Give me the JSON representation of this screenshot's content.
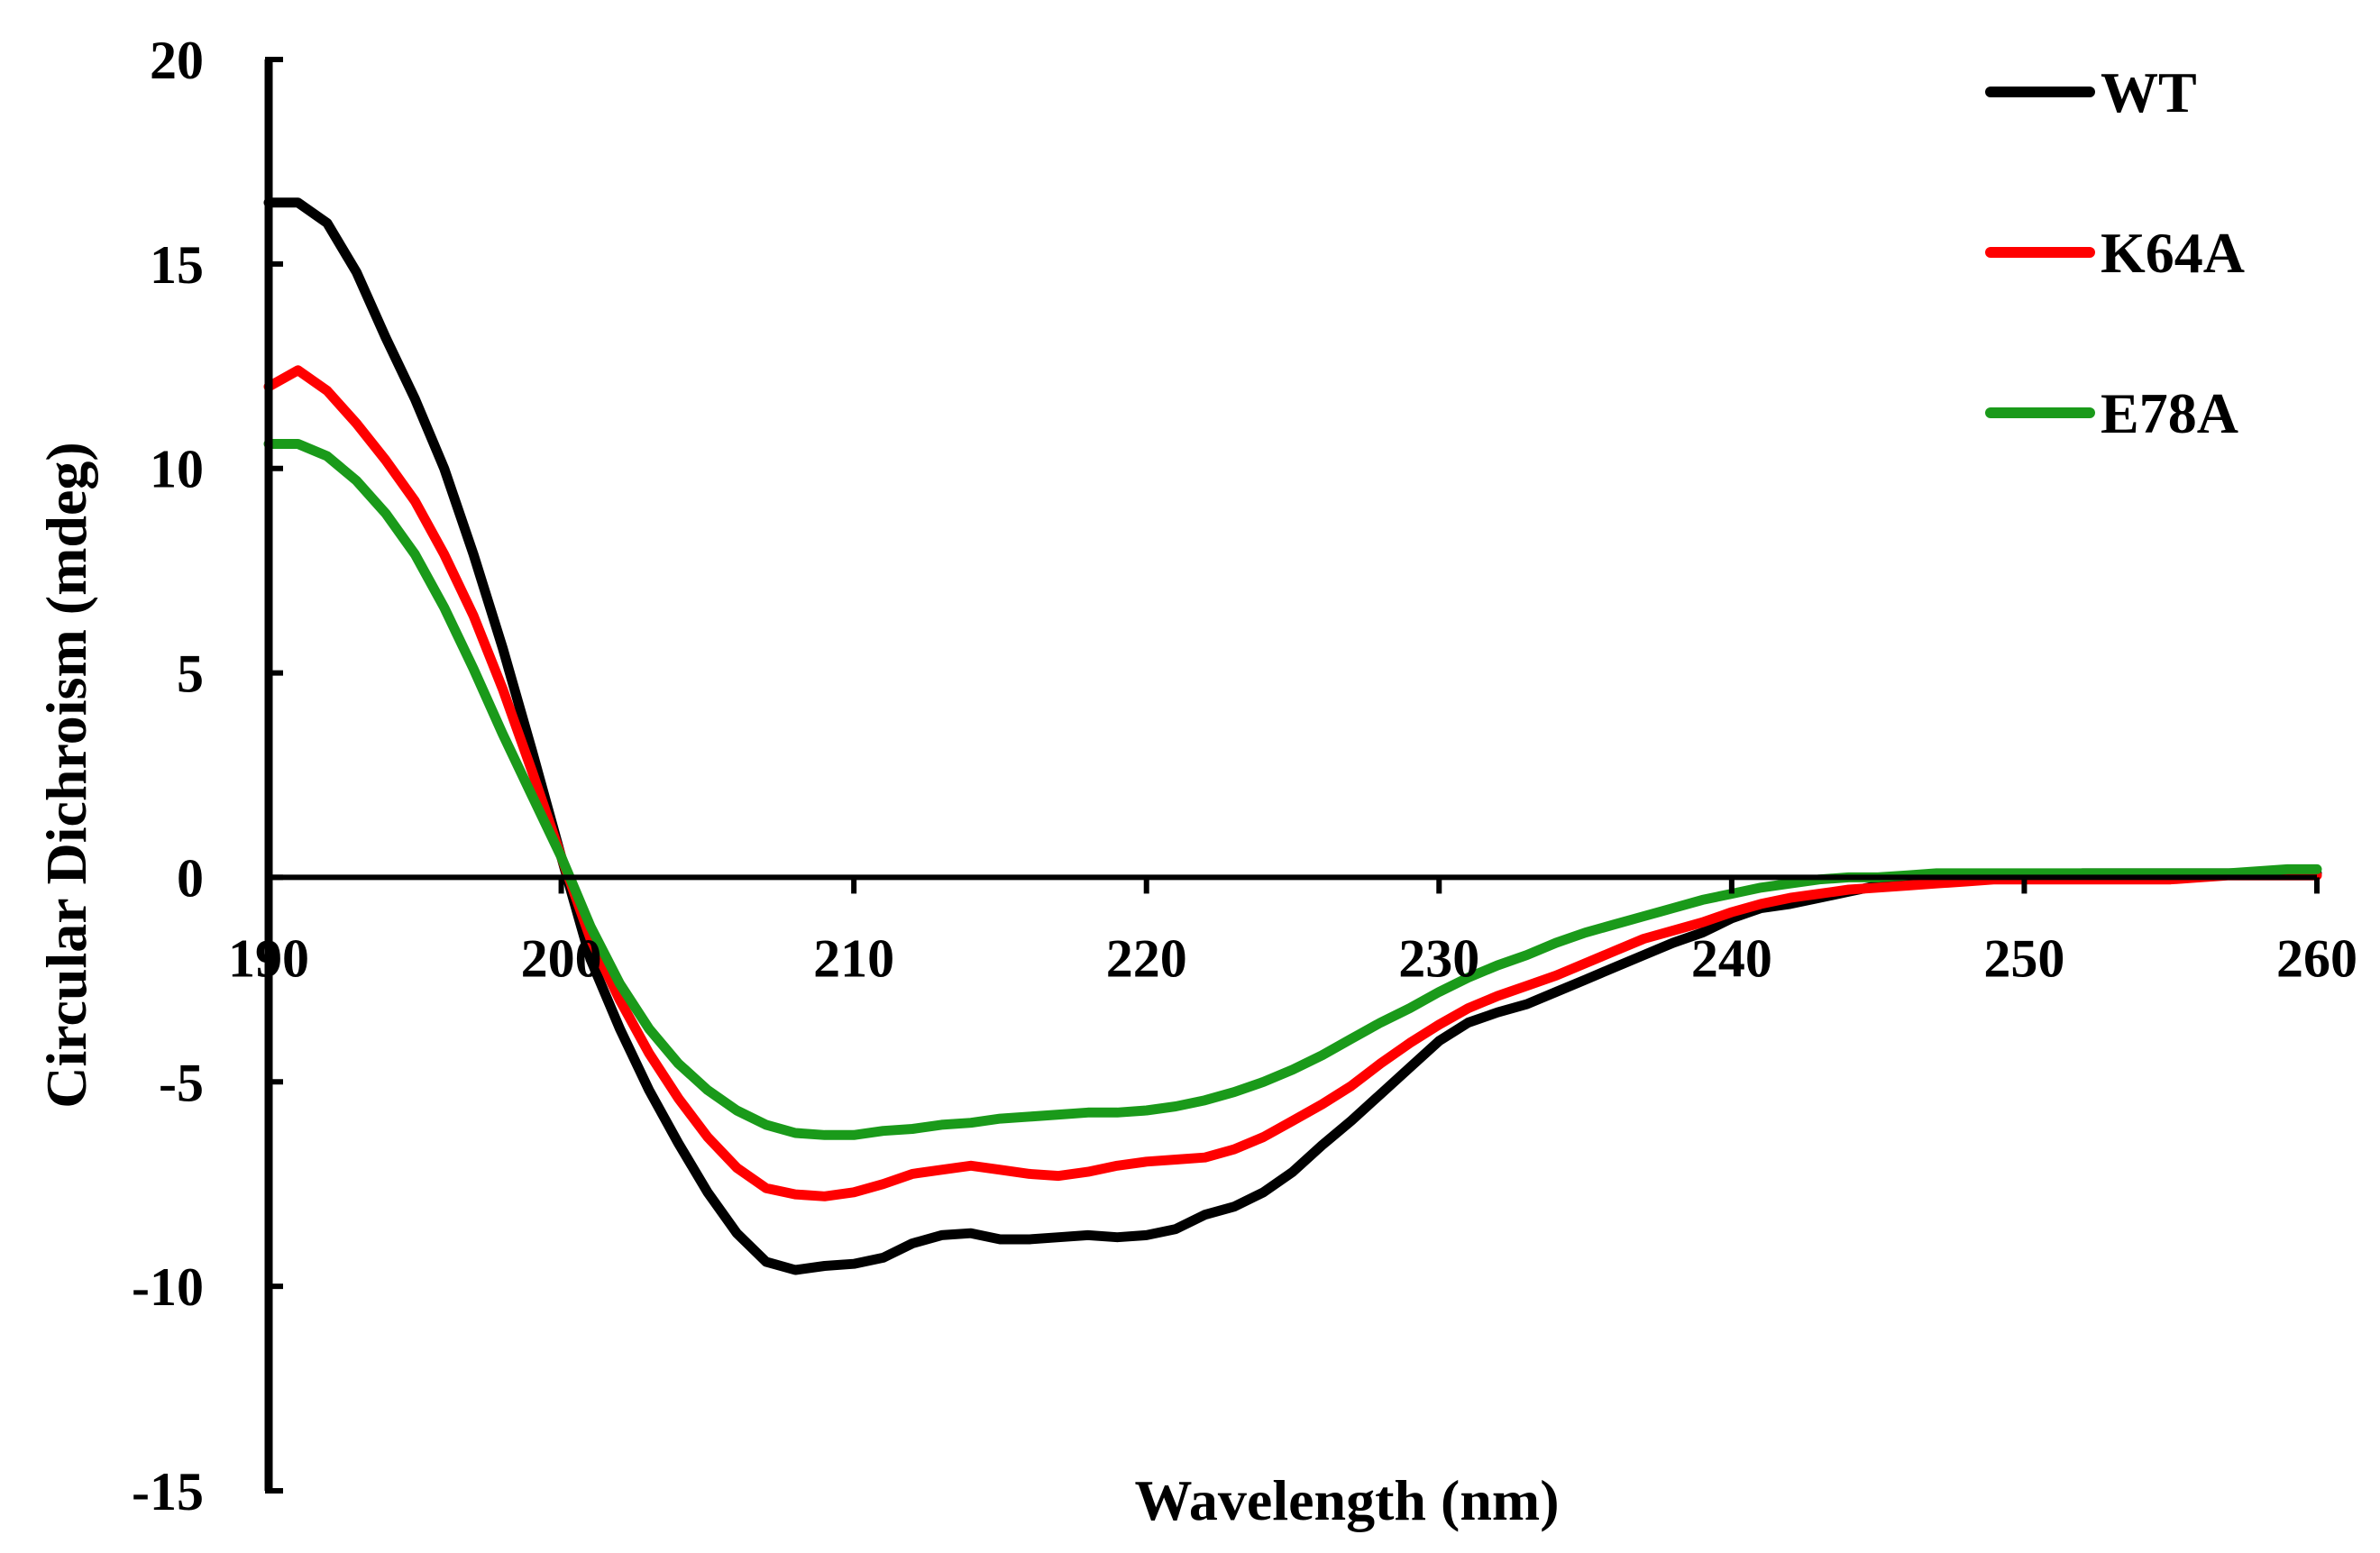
{
  "chart_data": {
    "type": "line",
    "title": "",
    "xlabel": "Wavelength (nm)",
    "ylabel": "Circular Dichroism (mdeg)",
    "xlim": [
      190,
      260
    ],
    "ylim": [
      -15,
      20
    ],
    "xticks": [
      190,
      200,
      210,
      220,
      230,
      240,
      250,
      260
    ],
    "yticks": [
      20,
      15,
      10,
      5,
      0,
      -5,
      -10,
      -15
    ],
    "legend_position": "top-right",
    "grid": false,
    "series": [
      {
        "name": "WT",
        "color": "#000000",
        "x": [
          190,
          191,
          192,
          193,
          194,
          195,
          196,
          197,
          198,
          199,
          200,
          201,
          202,
          203,
          204,
          205,
          206,
          207,
          208,
          209,
          210,
          211,
          212,
          213,
          214,
          215,
          216,
          217,
          218,
          219,
          220,
          221,
          222,
          223,
          224,
          225,
          226,
          227,
          228,
          229,
          230,
          231,
          232,
          233,
          234,
          235,
          236,
          237,
          238,
          239,
          240,
          241,
          242,
          243,
          244,
          245,
          246,
          247,
          248,
          249,
          250,
          251,
          252,
          253,
          254,
          255,
          256,
          257,
          258,
          259,
          260
        ],
        "values": [
          16.5,
          16.5,
          16.0,
          14.8,
          13.2,
          11.7,
          10.0,
          7.9,
          5.6,
          3.1,
          0.5,
          -2.0,
          -3.7,
          -5.2,
          -6.5,
          -7.7,
          -8.7,
          -9.4,
          -9.6,
          -9.5,
          -9.45,
          -9.3,
          -8.95,
          -8.75,
          -8.7,
          -8.85,
          -8.85,
          -8.8,
          -8.75,
          -8.8,
          -8.75,
          -8.6,
          -8.25,
          -8.05,
          -7.7,
          -7.2,
          -6.55,
          -5.95,
          -5.3,
          -4.65,
          -4.0,
          -3.55,
          -3.3,
          -3.1,
          -2.8,
          -2.5,
          -2.2,
          -1.9,
          -1.6,
          -1.35,
          -1.0,
          -0.75,
          -0.65,
          -0.5,
          -0.35,
          -0.2,
          -0.1,
          -0.05,
          0.0,
          0.0,
          0.0,
          0.05,
          0.1,
          0.1,
          0.1,
          0.1,
          0.1,
          0.1,
          0.1,
          0.15,
          0.1
        ]
      },
      {
        "name": "K64A",
        "color": "#ff0000",
        "x": [
          190,
          191,
          192,
          193,
          194,
          195,
          196,
          197,
          198,
          199,
          200,
          201,
          202,
          203,
          204,
          205,
          206,
          207,
          208,
          209,
          210,
          211,
          212,
          213,
          214,
          215,
          216,
          217,
          218,
          219,
          220,
          221,
          222,
          223,
          224,
          225,
          226,
          227,
          228,
          229,
          230,
          231,
          232,
          233,
          234,
          235,
          236,
          237,
          238,
          239,
          240,
          241,
          242,
          243,
          244,
          245,
          246,
          247,
          248,
          249,
          250,
          251,
          252,
          253,
          254,
          255,
          256,
          257,
          258,
          259,
          260
        ],
        "values": [
          12.0,
          12.4,
          11.9,
          11.1,
          10.2,
          9.2,
          7.9,
          6.4,
          4.6,
          2.6,
          0.5,
          -1.5,
          -3.0,
          -4.3,
          -5.4,
          -6.35,
          -7.1,
          -7.6,
          -7.75,
          -7.8,
          -7.7,
          -7.5,
          -7.25,
          -7.15,
          -7.05,
          -7.15,
          -7.25,
          -7.3,
          -7.2,
          -7.05,
          -6.95,
          -6.9,
          -6.85,
          -6.65,
          -6.35,
          -5.95,
          -5.55,
          -5.1,
          -4.55,
          -4.05,
          -3.6,
          -3.2,
          -2.9,
          -2.65,
          -2.4,
          -2.1,
          -1.8,
          -1.5,
          -1.3,
          -1.1,
          -0.85,
          -0.65,
          -0.5,
          -0.4,
          -0.3,
          -0.25,
          -0.2,
          -0.15,
          -0.1,
          -0.05,
          -0.05,
          -0.05,
          -0.05,
          -0.05,
          -0.05,
          -0.05,
          0.0,
          0.05,
          0.05,
          0.05,
          0.05
        ]
      },
      {
        "name": "E78A",
        "color": "#1a9a1a",
        "x": [
          190,
          191,
          192,
          193,
          194,
          195,
          196,
          197,
          198,
          199,
          200,
          201,
          202,
          203,
          204,
          205,
          206,
          207,
          208,
          209,
          210,
          211,
          212,
          213,
          214,
          215,
          216,
          217,
          218,
          219,
          220,
          221,
          222,
          223,
          224,
          225,
          226,
          227,
          228,
          229,
          230,
          231,
          232,
          233,
          234,
          235,
          236,
          237,
          238,
          239,
          240,
          241,
          242,
          243,
          244,
          245,
          246,
          247,
          248,
          249,
          250,
          251,
          252,
          253,
          254,
          255,
          256,
          257,
          258,
          259,
          260
        ],
        "values": [
          10.6,
          10.6,
          10.3,
          9.7,
          8.9,
          7.9,
          6.6,
          5.1,
          3.5,
          2.0,
          0.5,
          -1.2,
          -2.6,
          -3.7,
          -4.55,
          -5.2,
          -5.7,
          -6.05,
          -6.25,
          -6.3,
          -6.3,
          -6.2,
          -6.15,
          -6.05,
          -6.0,
          -5.9,
          -5.85,
          -5.8,
          -5.75,
          -5.75,
          -5.7,
          -5.6,
          -5.45,
          -5.25,
          -5.0,
          -4.7,
          -4.35,
          -3.95,
          -3.55,
          -3.2,
          -2.8,
          -2.45,
          -2.15,
          -1.9,
          -1.6,
          -1.35,
          -1.15,
          -0.95,
          -0.75,
          -0.55,
          -0.4,
          -0.25,
          -0.15,
          -0.05,
          0.0,
          0.0,
          0.05,
          0.1,
          0.1,
          0.1,
          0.1,
          0.1,
          0.1,
          0.1,
          0.1,
          0.1,
          0.1,
          0.1,
          0.15,
          0.2,
          0.2
        ]
      }
    ]
  }
}
